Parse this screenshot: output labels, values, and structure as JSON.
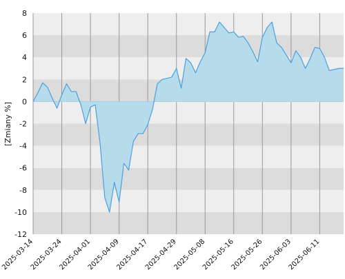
{
  "chart_data": {
    "type": "area",
    "ylabel": "[Zmiany %]",
    "ylim": [
      -12,
      8
    ],
    "yticks": [
      8,
      6,
      4,
      2,
      0,
      -2,
      -4,
      -6,
      -8,
      -10,
      -12
    ],
    "x_tick_labels": [
      "2025-03-14",
      "2025-03-24",
      "2025-04-01",
      "2025-04-09",
      "2025-04-17",
      "2025-04-29",
      "2025-05-08",
      "2025-05-16",
      "2025-05-26",
      "2025-06-03",
      "2025-06-11"
    ],
    "x_tick_indices": [
      0,
      6,
      12,
      18,
      24,
      30,
      36,
      42,
      48,
      54,
      60
    ],
    "series": [
      {
        "x_index": [
          0,
          1,
          2,
          3,
          4,
          5,
          6,
          7,
          8,
          9,
          10,
          11,
          12,
          13,
          14,
          15,
          16,
          17,
          18,
          19,
          20,
          21,
          22,
          23,
          24,
          25,
          26,
          27,
          28,
          29,
          30,
          31,
          32,
          33,
          34,
          35,
          36,
          37,
          38,
          39,
          40,
          41,
          42,
          43,
          44,
          45,
          46,
          47,
          48,
          49,
          50,
          51,
          52,
          53,
          54,
          55,
          56,
          57,
          58,
          59,
          60,
          61,
          62,
          63,
          64,
          65
        ],
        "values": [
          0.0,
          0.8,
          1.7,
          1.3,
          0.3,
          -0.6,
          0.6,
          1.6,
          0.9,
          0.9,
          -0.3,
          -2.0,
          -0.5,
          -0.3,
          -3.7,
          -8.7,
          -10.0,
          -7.3,
          -9.1,
          -5.6,
          -6.2,
          -3.6,
          -2.9,
          -2.9,
          -2.1,
          -0.7,
          1.6,
          2.0,
          2.1,
          2.2,
          3.0,
          1.2,
          3.9,
          3.5,
          2.6,
          3.6,
          4.4,
          6.3,
          6.3,
          7.2,
          6.7,
          6.2,
          6.3,
          5.8,
          5.9,
          5.3,
          4.5,
          3.6,
          5.8,
          6.7,
          7.2,
          5.3,
          4.9,
          4.2,
          3.5,
          4.6,
          4.0,
          3.0,
          3.9,
          4.9,
          4.8,
          4.0,
          2.8,
          2.9,
          3.0,
          3.0
        ]
      }
    ],
    "grid": true,
    "colors": {
      "band_dark": "#dcdcdc",
      "band_light": "#eeeeee",
      "vgrid": "#999999",
      "area_fill": "#b6dcec",
      "line": "#4a9fe0",
      "zero_line": "#9fd0e6",
      "axis_text": "#111111"
    }
  }
}
